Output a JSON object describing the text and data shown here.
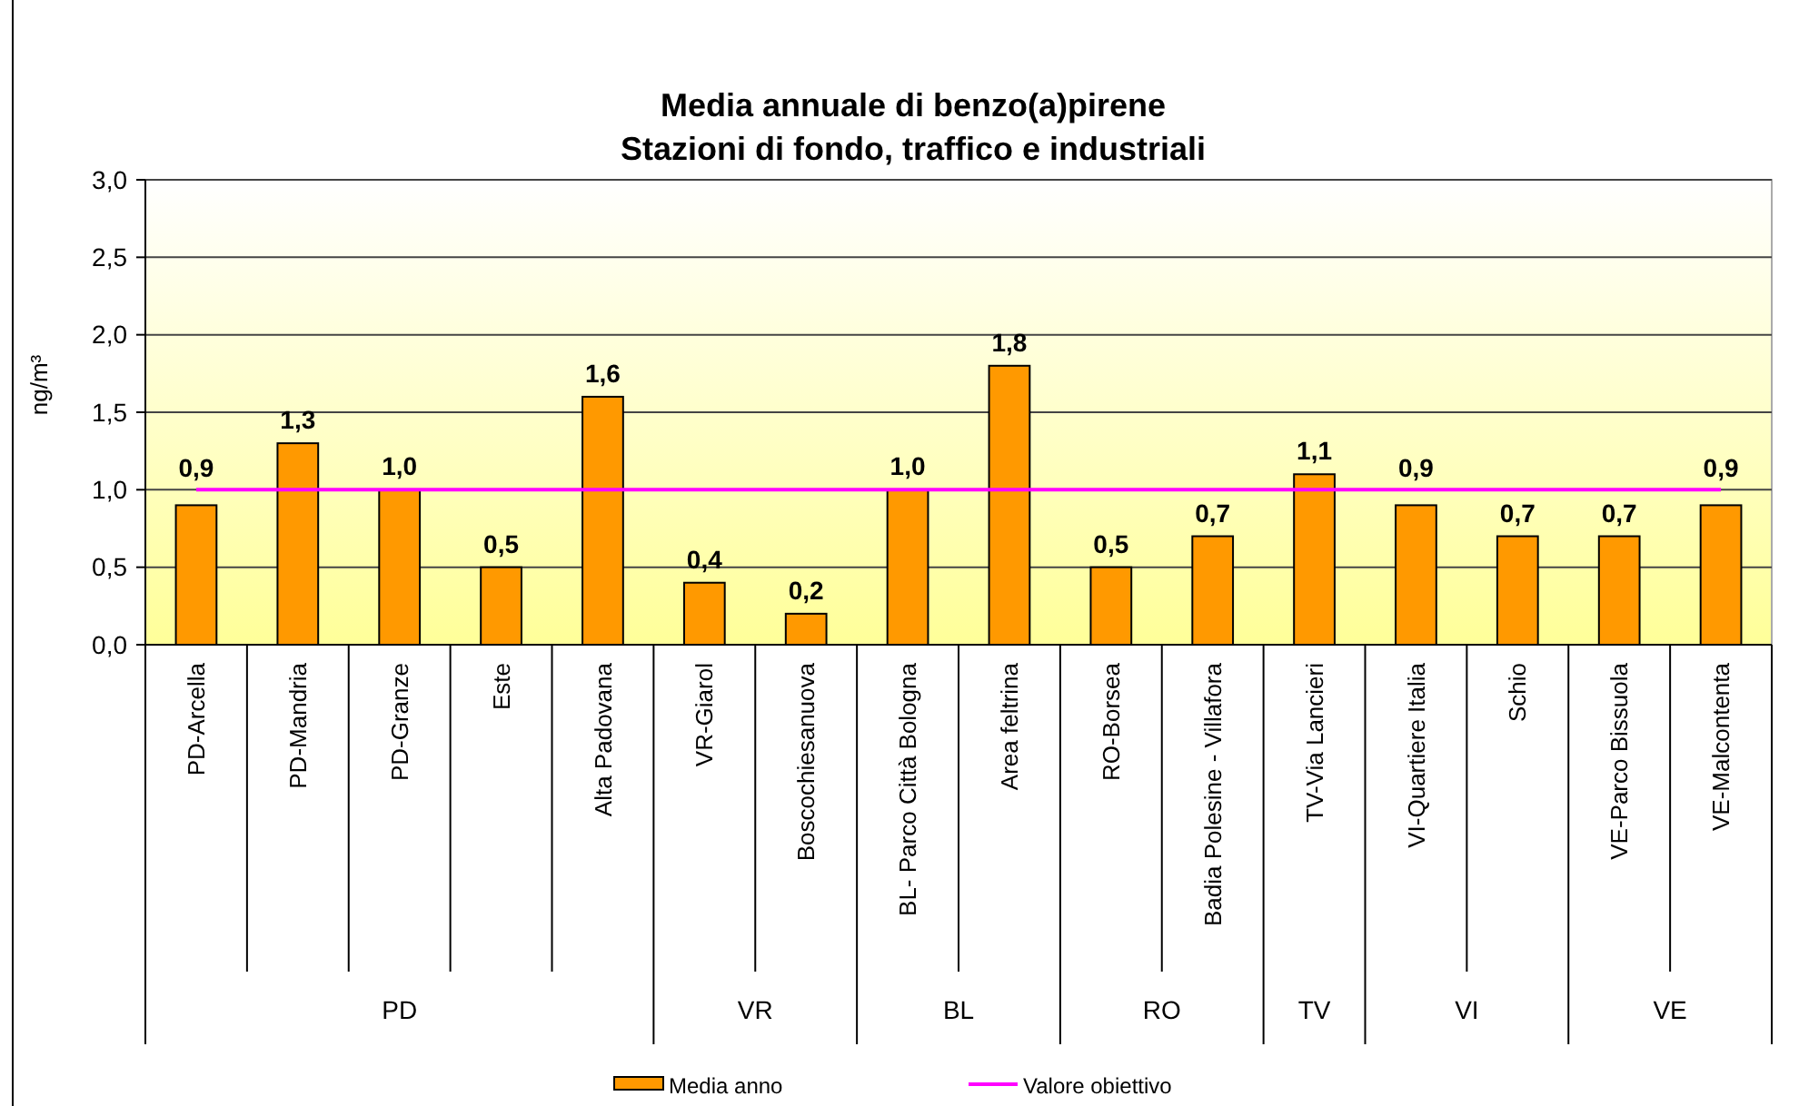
{
  "chart_data": {
    "type": "bar",
    "title": "Media annuale di benzo(a)pirene\nStazioni di fondo, traffico e industriali",
    "ylabel": "ng/m³",
    "categories": [
      "PD-Arcella",
      "PD-Mandria",
      "PD-Granze",
      "Este",
      "Alta Padovana",
      "VR-Giarol",
      "Boscochiesanuova",
      "BL- Parco Città Bologna",
      "Area feltrina",
      "RO-Borsea",
      "Badia Polesine - Villafora",
      "TV-Via Lancieri",
      "VI-Quartiere Italia",
      "Schio",
      "VE-Parco Bissuola",
      "VE-Malcontenta"
    ],
    "series": [
      {
        "name": "Media anno",
        "color": "#ff9900",
        "values": [
          0.9,
          1.3,
          1.0,
          0.5,
          1.6,
          0.4,
          0.2,
          1.0,
          1.8,
          0.5,
          0.7,
          1.1,
          0.9,
          0.7,
          0.7,
          0.9
        ],
        "value_labels": [
          "0,9",
          "1,3",
          "1,0",
          "0,5",
          "1,6",
          "0,4",
          "0,2",
          "1,0",
          "1,8",
          "0,5",
          "0,7",
          "1,1",
          "0,9",
          "0,7",
          "0,7",
          "0,9"
        ]
      },
      {
        "name": "Valore obiettivo",
        "type": "line",
        "color": "#ff00ff",
        "values": [
          1.0,
          1.0,
          1.0,
          1.0,
          1.0,
          1.0,
          1.0,
          1.0,
          1.0,
          1.0,
          1.0,
          1.0,
          1.0,
          1.0,
          1.0,
          1.0
        ]
      }
    ],
    "annotations": [
      "PD",
      "VR",
      "BL",
      "RO",
      "TV",
      "VI",
      "VE"
    ],
    "ylim": [
      0,
      3
    ],
    "yticks": [
      {
        "value": 0,
        "label": "0,0"
      },
      {
        "value": 0.5,
        "label": "0,5"
      },
      {
        "value": 1,
        "label": "1,0"
      },
      {
        "value": 1.5,
        "label": "1,5"
      },
      {
        "value": 2,
        "label": "2,0"
      },
      {
        "value": 2.5,
        "label": "2,5"
      },
      {
        "value": 3,
        "label": "3,0"
      }
    ],
    "grid": "y",
    "legend": "bottom",
    "marker": "none",
    "line_style": "solid"
  }
}
